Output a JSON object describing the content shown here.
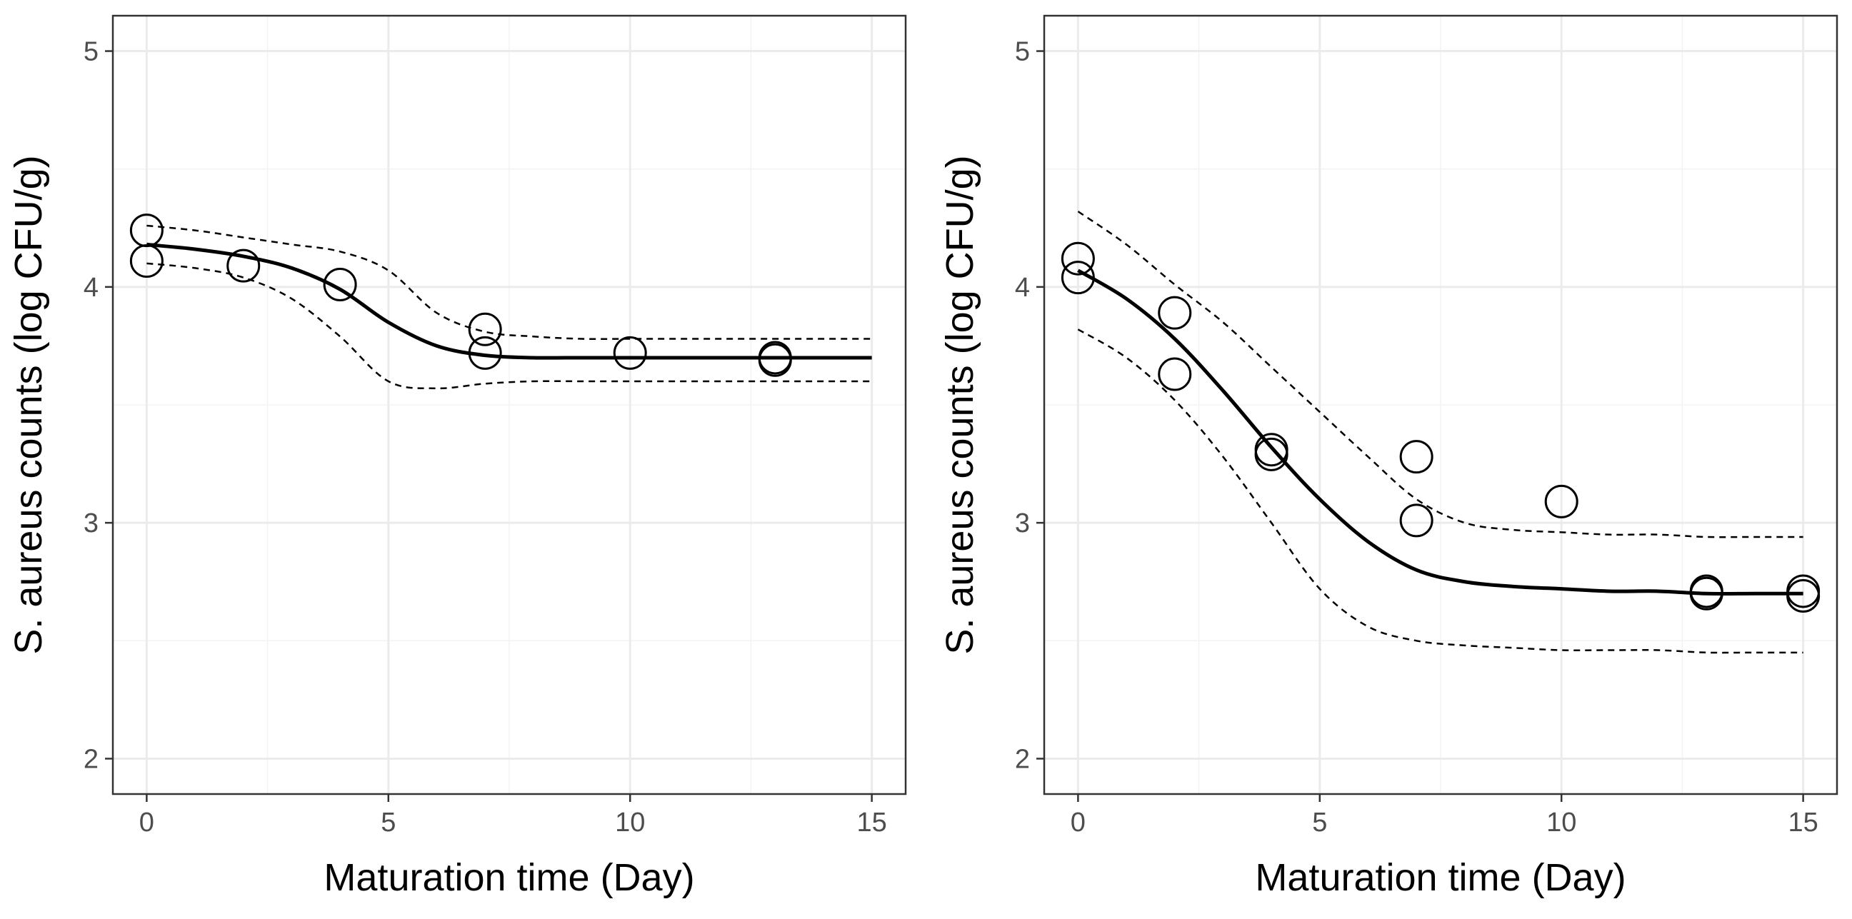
{
  "chart_data": [
    {
      "type": "scatter",
      "title": "",
      "xlabel": "Maturation time (Day)",
      "ylabel": "S. aureus counts (log CFU/g)",
      "xlim": [
        -0.7,
        15.7
      ],
      "ylim": [
        1.85,
        5.15
      ],
      "x_ticks": [
        0,
        5,
        10,
        15
      ],
      "x_tick_labels": [
        "0",
        "5",
        "10",
        "15"
      ],
      "y_ticks": [
        2,
        3,
        4,
        5
      ],
      "y_tick_labels": [
        "2",
        "3",
        "4",
        "5"
      ],
      "grid": true,
      "points": [
        [
          0,
          4.24
        ],
        [
          0,
          4.11
        ],
        [
          2,
          4.09
        ],
        [
          4,
          4.01
        ],
        [
          7,
          3.82
        ],
        [
          7,
          3.72
        ],
        [
          10,
          3.72
        ],
        [
          13,
          3.7
        ],
        [
          13,
          3.69
        ]
      ],
      "fit": {
        "x": [
          0,
          1,
          2,
          3,
          4,
          5,
          6,
          7,
          8,
          9,
          10,
          11,
          12,
          13,
          14,
          15
        ],
        "y": [
          4.18,
          4.16,
          4.13,
          4.08,
          3.99,
          3.85,
          3.75,
          3.71,
          3.7,
          3.7,
          3.7,
          3.7,
          3.7,
          3.7,
          3.7,
          3.7
        ]
      },
      "upper_ci": {
        "x": [
          0,
          1,
          2,
          3,
          4,
          5,
          6,
          7,
          8,
          9,
          10,
          11,
          12,
          13,
          14,
          15
        ],
        "y": [
          4.26,
          4.24,
          4.21,
          4.18,
          4.15,
          4.07,
          3.89,
          3.81,
          3.79,
          3.78,
          3.78,
          3.78,
          3.78,
          3.78,
          3.78,
          3.78
        ]
      },
      "lower_ci": {
        "x": [
          0,
          1,
          2,
          3,
          4,
          5,
          6,
          7,
          8,
          9,
          10,
          11,
          12,
          13,
          14,
          15
        ],
        "y": [
          4.1,
          4.08,
          4.04,
          3.95,
          3.79,
          3.6,
          3.57,
          3.59,
          3.6,
          3.6,
          3.6,
          3.6,
          3.6,
          3.6,
          3.6,
          3.6
        ]
      }
    },
    {
      "type": "scatter",
      "title": "",
      "xlabel": "Maturation time (Day)",
      "ylabel": "S. aureus counts (log CFU/g)",
      "xlim": [
        -0.7,
        15.7
      ],
      "ylim": [
        1.85,
        5.15
      ],
      "x_ticks": [
        0,
        5,
        10,
        15
      ],
      "x_tick_labels": [
        "0",
        "5",
        "10",
        "15"
      ],
      "y_ticks": [
        2,
        3,
        4,
        5
      ],
      "y_tick_labels": [
        "2",
        "3",
        "4",
        "5"
      ],
      "grid": true,
      "points": [
        [
          0,
          4.12
        ],
        [
          0,
          4.04
        ],
        [
          2,
          3.89
        ],
        [
          2,
          3.63
        ],
        [
          4,
          3.31
        ],
        [
          4,
          3.29
        ],
        [
          7,
          3.28
        ],
        [
          7,
          3.01
        ],
        [
          10,
          3.09
        ],
        [
          13,
          2.71
        ],
        [
          13,
          2.7
        ],
        [
          15,
          2.71
        ],
        [
          15,
          2.69
        ]
      ],
      "fit": {
        "x": [
          0,
          1,
          2,
          3,
          4,
          5,
          6,
          7,
          8,
          9,
          10,
          11,
          12,
          13,
          14,
          15
        ],
        "y": [
          4.07,
          3.95,
          3.78,
          3.56,
          3.32,
          3.1,
          2.92,
          2.8,
          2.75,
          2.73,
          2.72,
          2.71,
          2.71,
          2.7,
          2.7,
          2.7
        ]
      },
      "upper_ci": {
        "x": [
          0,
          1,
          2,
          3,
          4,
          5,
          6,
          7,
          8,
          9,
          10,
          11,
          12,
          13,
          14,
          15
        ],
        "y": [
          4.32,
          4.18,
          4.01,
          3.85,
          3.66,
          3.47,
          3.28,
          3.1,
          3.0,
          2.97,
          2.96,
          2.95,
          2.95,
          2.94,
          2.94,
          2.94
        ]
      },
      "lower_ci": {
        "x": [
          0,
          1,
          2,
          3,
          4,
          5,
          6,
          7,
          8,
          9,
          10,
          11,
          12,
          13,
          14,
          15
        ],
        "y": [
          3.82,
          3.7,
          3.52,
          3.28,
          3.0,
          2.72,
          2.56,
          2.5,
          2.48,
          2.47,
          2.46,
          2.46,
          2.46,
          2.45,
          2.45,
          2.45
        ]
      }
    }
  ]
}
